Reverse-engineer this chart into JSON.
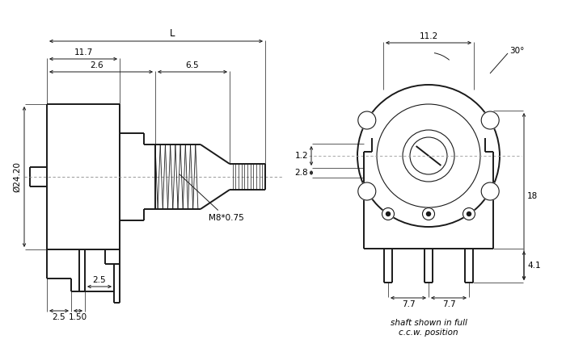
{
  "bg_color": "#ffffff",
  "line_color": "#1a1a1a",
  "fig_width": 7.0,
  "fig_height": 4.41,
  "dpi": 100,
  "annotations": {
    "dim_11_7": "11.7",
    "dim_L": "L",
    "dim_2_6": "2.6",
    "dim_6_5": "6.5",
    "dim_24_20": "Ø24.20",
    "dim_M8": "M8*0.75",
    "dim_2_5a": "2.5",
    "dim_1_50": "1.50",
    "dim_2_5b": "2.5",
    "dim_11_2": "11.2",
    "dim_30": "30°",
    "dim_1_2": "1.2",
    "dim_2_8": "2.8",
    "dim_18": "18",
    "dim_4_1": "4.1",
    "dim_7_7a": "7.7",
    "dim_7_7b": "7.7",
    "caption": "shaft shown in full\nc.c.w. position"
  }
}
